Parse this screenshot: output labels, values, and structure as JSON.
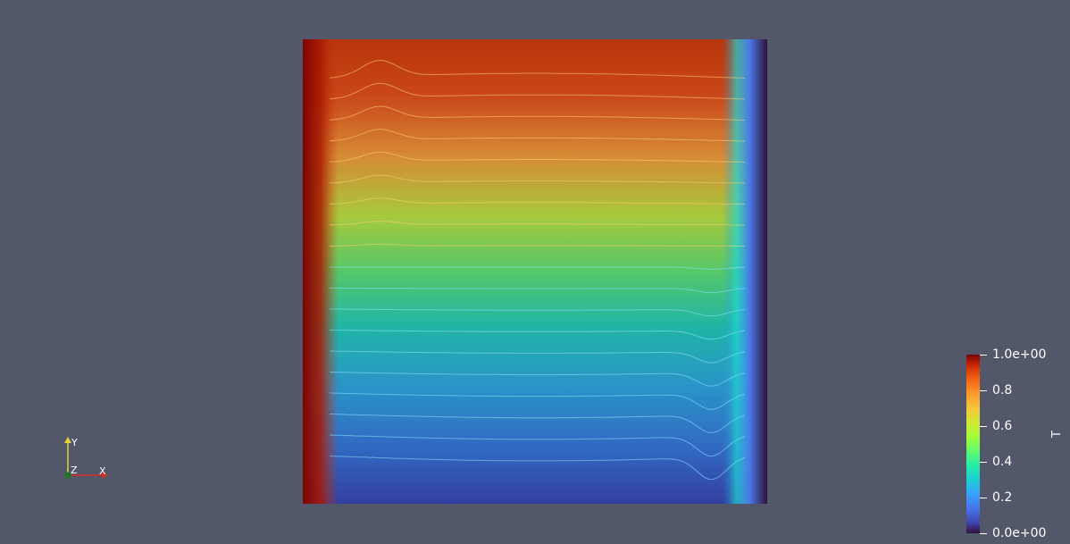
{
  "scene": {
    "background": "#525769",
    "field_name": "T"
  },
  "chart_data": {
    "type": "heatmap",
    "title": "",
    "variable": "T",
    "colormap": "turbo",
    "range": [
      0.0,
      1.0
    ],
    "x_range": [
      0,
      1
    ],
    "y_range": [
      0,
      1
    ],
    "description_values": {
      "left_wall_T": 1.0,
      "right_wall_T": 0.0,
      "top_core_T": 0.85,
      "bottom_core_T": 0.15
    },
    "isolines_count": 20
  },
  "colorbar": {
    "title": "T",
    "labels": [
      "1.0e+00",
      "0.8",
      "0.6",
      "0.4",
      "0.2",
      "0.0e+00"
    ],
    "values": [
      1.0,
      0.8,
      0.6,
      0.4,
      0.2,
      0.0
    ]
  },
  "orientation_axes": {
    "x_label": "X",
    "y_label": "Y",
    "z_label": "Z",
    "x_color": "#d32f2f",
    "y_color": "#e6d23a",
    "z_color": "#1b7a1b"
  }
}
